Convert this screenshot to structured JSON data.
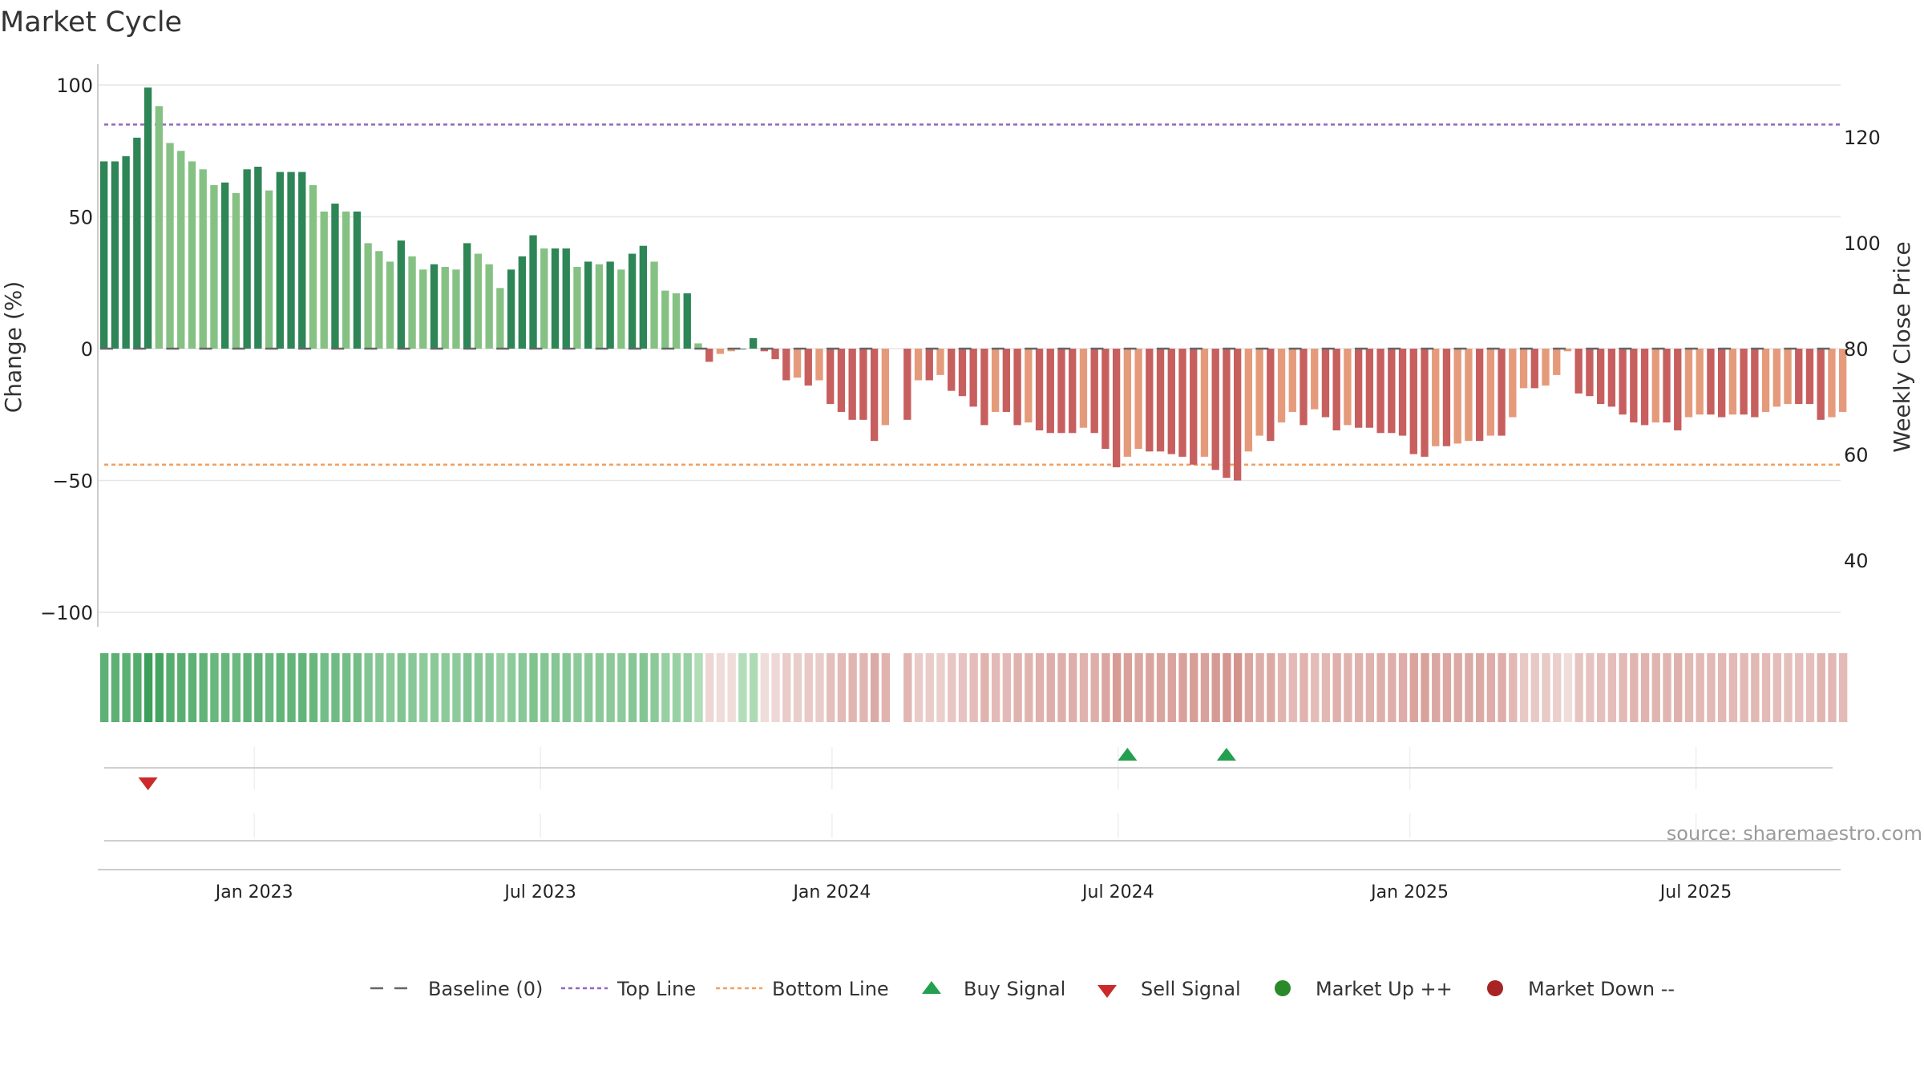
{
  "chart_data": {
    "type": "bar",
    "title": "Market Cycle",
    "ylabel_left": "Change (%)",
    "ylabel_right": "Weekly Close Price",
    "left_ylim": [
      -100,
      100
    ],
    "left_ticks": [
      100,
      50,
      0,
      -50,
      -100
    ],
    "left_tick_labels": [
      "100",
      "50",
      "0",
      "−50",
      "−100"
    ],
    "right_ticks": [
      120,
      100,
      80,
      60,
      40
    ],
    "right_tick_labels": [
      "120",
      "100",
      "80",
      "60",
      "40"
    ],
    "top_line": 85,
    "bottom_line": -44,
    "baseline": 0,
    "date_ticks": [
      {
        "label": "Jan 2023",
        "week": 14
      },
      {
        "label": "Jul 2023",
        "week": 40
      },
      {
        "label": "Jan 2024",
        "week": 66.5
      },
      {
        "label": "Jul 2024",
        "week": 92.5
      },
      {
        "label": "Jan 2025",
        "week": 119
      },
      {
        "label": "Jul 2025",
        "week": 145
      }
    ],
    "weeks_total": 158,
    "values": [
      71,
      71,
      73,
      80,
      99,
      92,
      78,
      75,
      71,
      68,
      62,
      63,
      59,
      68,
      69,
      60,
      67,
      67,
      67,
      62,
      52,
      55,
      52,
      52,
      40,
      37,
      33,
      41,
      35,
      30,
      32,
      31,
      30,
      40,
      36,
      32,
      23,
      30,
      35,
      43,
      38,
      38,
      38,
      31,
      33,
      32,
      33,
      30,
      36,
      39,
      33,
      22,
      21,
      21,
      2,
      -5,
      -2,
      -1,
      0,
      4,
      -1,
      -4,
      -12,
      -11,
      -14,
      -12,
      -21,
      -24,
      -27,
      -27,
      -35,
      -29,
      null,
      -27,
      -12,
      -12,
      -10,
      -16,
      -18,
      -22,
      -29,
      -24,
      -24,
      -29,
      -28,
      -31,
      -32,
      -32,
      -32,
      -30,
      -32,
      -38,
      -45,
      -41,
      -38,
      -39,
      -39,
      -40,
      -41,
      -44,
      -41,
      -46,
      -49,
      -50,
      -39,
      -33,
      -35,
      -28,
      -24,
      -29,
      -23,
      -26,
      -31,
      -29,
      -30,
      -30,
      -32,
      -32,
      -33,
      -40,
      -41,
      -37,
      -37,
      -36,
      -35,
      -35,
      -33,
      -33,
      -26,
      -15,
      -15,
      -14,
      -10,
      -1,
      -17,
      -18,
      -21,
      -22,
      -25,
      -28,
      -29,
      -28,
      -28,
      -31,
      -26,
      -25,
      -25,
      -26,
      -25,
      -25,
      -26,
      -24,
      -22,
      -21,
      -21,
      -21,
      -27,
      -26,
      -24
    ],
    "buy_signals": [
      93,
      102
    ],
    "sell_signals": [
      4
    ],
    "legend": [
      "Baseline (0)",
      "Top Line",
      "Bottom Line",
      "Buy Signal",
      "Sell Signal",
      "Market Up ++",
      "Market Down --"
    ]
  },
  "colors": {
    "up_strong": "#2e8556",
    "up_weak": "#86c184",
    "down_strong": "#c75f5f",
    "down_weak": "#e59b7b",
    "top_line": "#9467bd",
    "bottom_line": "#f0a060",
    "baseline": "#666666",
    "buy": "#22a04f",
    "sell": "#cc2a2a",
    "market_up": "#2a8a2a",
    "market_down": "#a82424",
    "grid": "#e6e6e6"
  },
  "source_text": "source: sharemaestro.com"
}
